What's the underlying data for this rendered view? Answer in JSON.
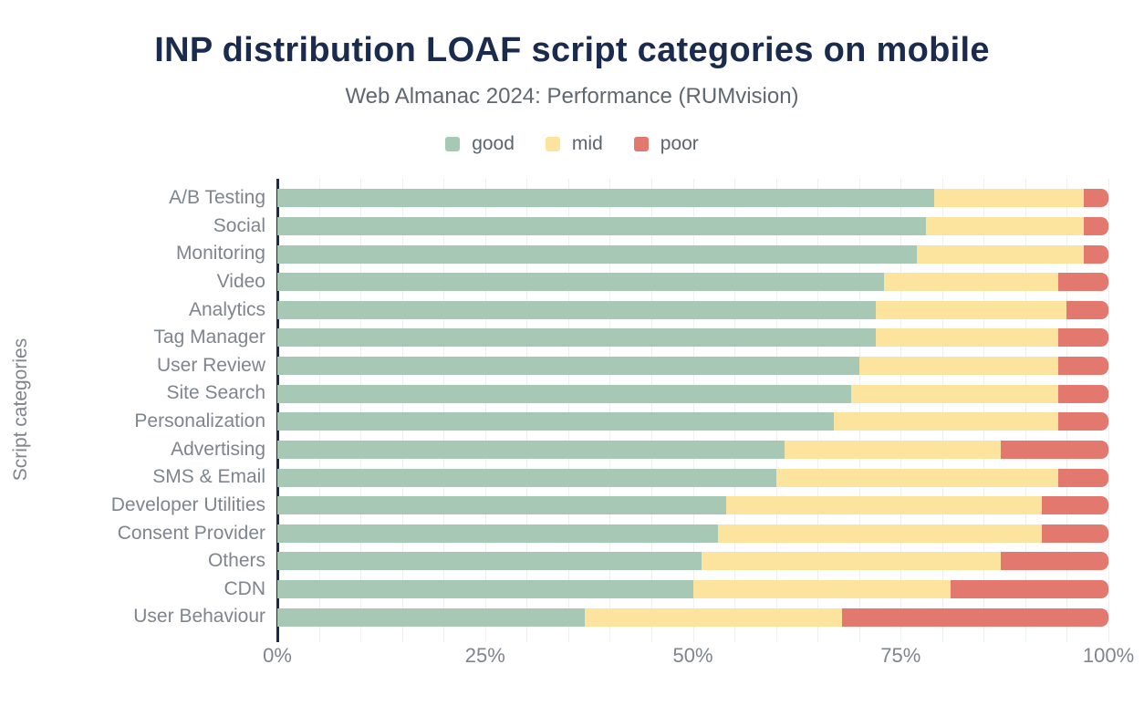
{
  "header": {
    "title": "INP distribution LOAF script categories on mobile",
    "subtitle": "Web Almanac 2024: Performance (RUMvision)"
  },
  "chart_data": {
    "type": "bar",
    "orientation": "horizontal",
    "stacked": true,
    "title": "INP distribution LOAF script categories on mobile",
    "subtitle": "Web Almanac 2024: Performance (RUMvision)",
    "xlabel": "",
    "ylabel": "Script categories",
    "unit": "%",
    "xlim": [
      0,
      100
    ],
    "grid_interval_pct": 5,
    "grid": true,
    "legend_position": "top",
    "x_ticks": [
      {
        "label": "0%",
        "value": 0
      },
      {
        "label": "25%",
        "value": 25
      },
      {
        "label": "50%",
        "value": 50
      },
      {
        "label": "75%",
        "value": 75
      },
      {
        "label": "100%",
        "value": 100
      }
    ],
    "categories": [
      "A/B Testing",
      "Social",
      "Monitoring",
      "Video",
      "Analytics",
      "Tag Manager",
      "User Review",
      "Site Search",
      "Personalization",
      "Advertising",
      "SMS & Email",
      "Developer Utilities",
      "Consent Provider",
      "Others",
      "CDN",
      "User Behaviour"
    ],
    "series": [
      {
        "name": "good",
        "color": "#a6c8b5",
        "values": [
          79,
          78,
          77,
          73,
          72,
          72,
          70,
          69,
          67,
          61,
          60,
          54,
          53,
          51,
          50,
          37
        ]
      },
      {
        "name": "mid",
        "color": "#fce49e",
        "values": [
          18,
          19,
          20,
          21,
          23,
          22,
          24,
          25,
          27,
          26,
          34,
          38,
          39,
          36,
          31,
          31
        ]
      },
      {
        "name": "poor",
        "color": "#e3786f",
        "values": [
          3,
          3,
          3,
          6,
          5,
          6,
          6,
          6,
          6,
          13,
          6,
          8,
          8,
          13,
          19,
          32
        ]
      }
    ]
  },
  "colors": {
    "title_text": "#1a2b4d",
    "subtitle_text": "#5f6770",
    "axis_label_text": "#7e858d",
    "axis_line": "#1a2b4d",
    "gridline": "#efefef",
    "background": "#ffffff"
  }
}
